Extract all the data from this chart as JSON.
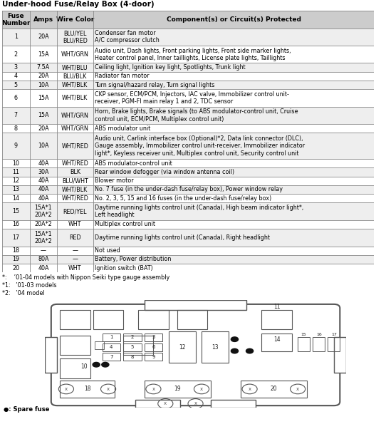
{
  "title": "Under-hood Fuse/Relay Box (4-door)",
  "headers": [
    "Fuse\nNumber",
    "Amps",
    "Wire Color",
    "Component(s) or Circuit(s) Protected"
  ],
  "rows": [
    {
      "fuse": "1",
      "amps": "20A",
      "wire": "BLU/YEL\nBLU/RED",
      "desc": "Condenser fan motor\nA/C compressor clutch"
    },
    {
      "fuse": "2",
      "amps": "15A",
      "wire": "WHT/GRN",
      "desc": "Audio unit, Dash lights, Front parking lights, Front side marker lights,\nHeater control panel, Inner taillights, License plate lights, Taillights"
    },
    {
      "fuse": "3",
      "amps": "7.5A",
      "wire": "WHT/BLU",
      "desc": "Ceiling light, Ignition key light, Spotlights, Trunk light"
    },
    {
      "fuse": "4",
      "amps": "20A",
      "wire": "BLU/BLK",
      "desc": "Radiator fan motor"
    },
    {
      "fuse": "5",
      "amps": "10A",
      "wire": "WHT/BLK",
      "desc": "Turn signal/hazard relay, Turn signal lights"
    },
    {
      "fuse": "6",
      "amps": "15A",
      "wire": "WHT/BLK",
      "desc": "CKP sensor, ECM/PCM, Injectors, IAC valve, Immobilizer control unit-\nreceiver, PGM-FI main relay 1 and 2, TDC sensor"
    },
    {
      "fuse": "7",
      "amps": "15A",
      "wire": "WHT/GRN",
      "desc": "Horn, Brake lights, Brake signals (to ABS modulator-control unit, Cruise\ncontrol unit, ECM/PCM, Multiplex control unit)"
    },
    {
      "fuse": "8",
      "amps": "20A",
      "wire": "WHT/GRN",
      "desc": "ABS modulator unit"
    },
    {
      "fuse": "9",
      "amps": "10A",
      "wire": "WHT/RED",
      "desc": "Audio unit, Carlink interface box (Optional)*2, Data link connector (DLC),\nGauge assembly, Immobilizer control unit-receiver, Immobilizer indicator\nlight*, Keyless receiver unit, Multiplex control unit, Security control unit"
    },
    {
      "fuse": "10",
      "amps": "40A",
      "wire": "WHT/RED",
      "desc": "ABS modulator-control unit"
    },
    {
      "fuse": "11",
      "amps": "30A",
      "wire": "BLK",
      "desc": "Rear window defogger (via window antenna coil)"
    },
    {
      "fuse": "12",
      "amps": "40A",
      "wire": "BLU/WHT",
      "desc": "Blower motor"
    },
    {
      "fuse": "13",
      "amps": "40A",
      "wire": "WHT/BLK",
      "desc": "No. 7 fuse (in the under-dash fuse/relay box), Power window relay"
    },
    {
      "fuse": "14",
      "amps": "40A",
      "wire": "WHT/RED",
      "desc": "No. 2, 3, 5, 15 and 16 fuses (in the under-dash fuse/relay box)"
    },
    {
      "fuse": "15",
      "amps": "15A*1\n20A*2",
      "wire": "RED/YEL",
      "desc": "Daytime running lights control unit (Canada), High beam indicator light*,\nLeft headlight"
    },
    {
      "fuse": "16",
      "amps": "20A*2",
      "wire": "WHT",
      "desc": "Multiplex control unit"
    },
    {
      "fuse": "17",
      "amps": "15A*1\n20A*2",
      "wire": "RED",
      "desc": "Daytime running lights control unit (Canada), Right headlight"
    },
    {
      "fuse": "18",
      "amps": "—",
      "wire": "—",
      "desc": "Not used"
    },
    {
      "fuse": "19",
      "amps": "80A",
      "wire": "—",
      "desc": "Battery, Power distribution"
    },
    {
      "fuse": "20",
      "amps": "40A",
      "wire": "WHT",
      "desc": "Ignition switch (BAT)"
    }
  ],
  "footnotes": [
    "*:    ’01-04 models with Nippon Seiki type gauge assembly",
    "*1:   ’01-03 models",
    "*2:   ’04 model"
  ],
  "row_lines": [
    2,
    2,
    1,
    1,
    1,
    2,
    2,
    1,
    3,
    1,
    1,
    1,
    1,
    1,
    2,
    1,
    2,
    1,
    1,
    1
  ],
  "header_lines": 2,
  "bg_color": "#ffffff",
  "header_bg": "#cccccc",
  "grid_color": "#888888",
  "text_color": "#000000",
  "title_fontsize": 7.5,
  "header_fontsize": 6.5,
  "cell_fontsize": 5.8
}
